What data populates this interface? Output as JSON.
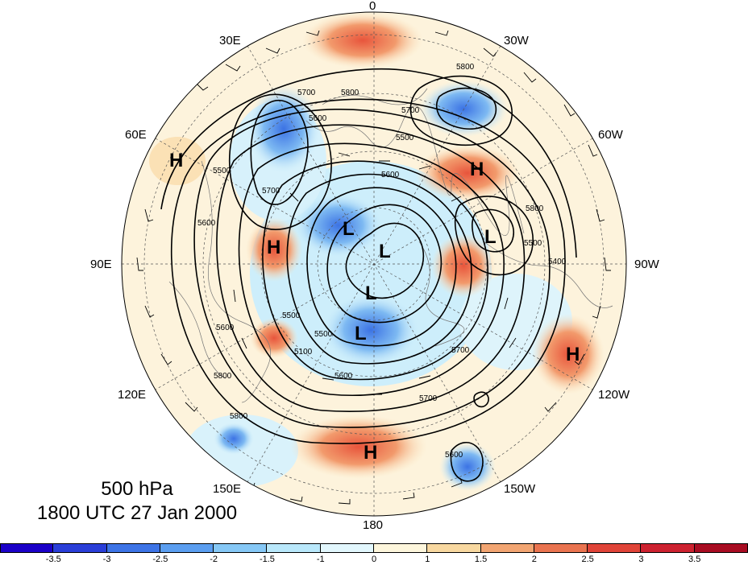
{
  "map": {
    "projection": "north polar stereographic",
    "level_label": "500 hPa",
    "time_label": "1800 UTC 27 Jan 2000",
    "longitude_labels": {
      "top": "0",
      "upper_left": "30E",
      "upper_right": "30W",
      "mid_upper_left": "60E",
      "mid_upper_right": "60W",
      "left": "90E",
      "right": "90W",
      "mid_lower_left": "120E",
      "mid_lower_right": "120W",
      "lower_left": "150E",
      "lower_right": "150W",
      "bottom": "180"
    },
    "pressure_centers": [
      "H",
      "H",
      "H",
      "H",
      "H",
      "L",
      "L",
      "L",
      "L",
      "L"
    ],
    "contour_labels": [
      "5800",
      "5700",
      "5800",
      "5700",
      "5600",
      "5500",
      "5500",
      "5600",
      "5700",
      "5600",
      "5800",
      "5500",
      "5400",
      "5500",
      "5600",
      "5500",
      "5100",
      "5700",
      "5600",
      "5800",
      "5700",
      "5800",
      "5600"
    ]
  },
  "colorbar": {
    "tick_labels": [
      "-3.5",
      "-3",
      "-2.5",
      "-2",
      "-1.5",
      "-1",
      "0",
      "1",
      "1.5",
      "2",
      "2.5",
      "3",
      "3.5"
    ],
    "colors": [
      "#1b00c8",
      "#2a3ed8",
      "#3d74e6",
      "#5b9ef0",
      "#86c8f6",
      "#b9e8fb",
      "#e2f7fd",
      "#fdf6dc",
      "#f8d8a0",
      "#f2a572",
      "#ea7450",
      "#e04438",
      "#cd2230",
      "#a80c22"
    ]
  }
}
